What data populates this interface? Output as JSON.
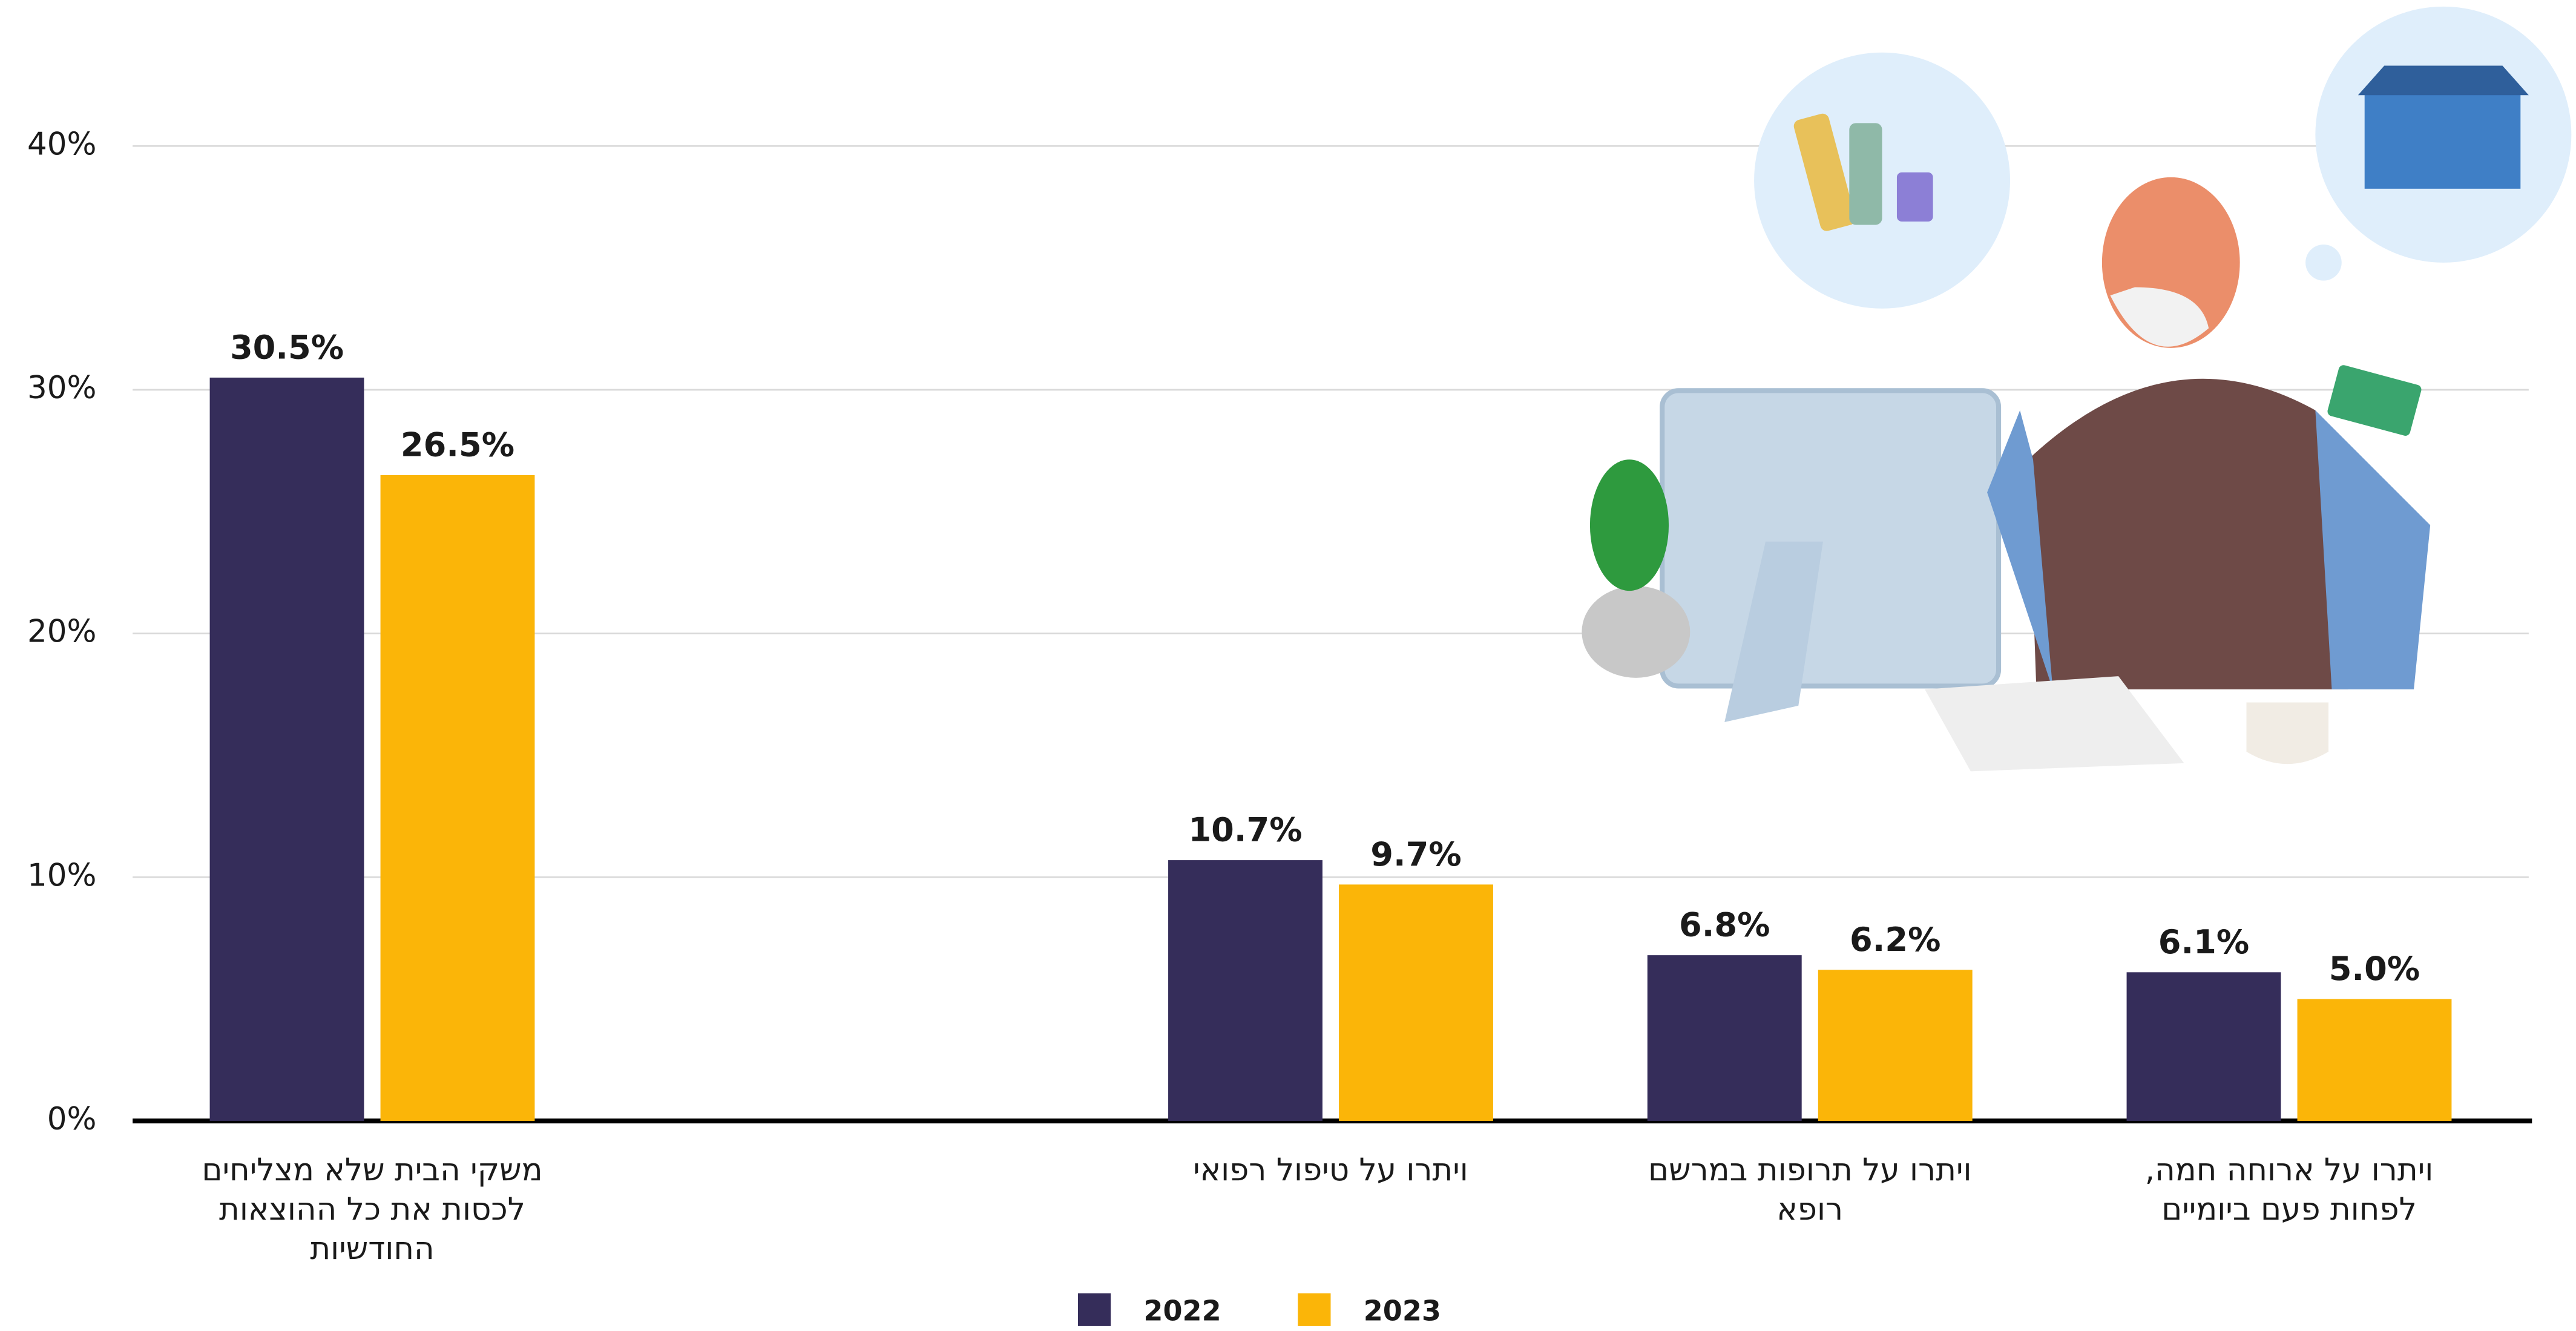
{
  "chart_data": {
    "type": "bar",
    "categories": [
      [
        "משקי הבית שלא מצליחים",
        "לכסות את כל ההוצאות",
        "החודשיות"
      ],
      null,
      [
        "ויתרו על טיפול רפואי"
      ],
      [
        "ויתרו על תרופות במרשם",
        "רופא"
      ],
      [
        "ויתרו על ארוחה חמה,",
        "לפחות פעם ביומיים"
      ]
    ],
    "series": [
      {
        "name": "2022",
        "color": "#352d5a",
        "values": [
          30.5,
          null,
          10.7,
          6.8,
          6.1
        ],
        "value_labels": [
          "30.5%",
          null,
          "10.7%",
          "6.8%",
          "6.1%"
        ]
      },
      {
        "name": "2023",
        "color": "#fbb508",
        "values": [
          26.5,
          null,
          9.7,
          6.2,
          5.0
        ],
        "value_labels": [
          "26.5%",
          null,
          "9.7%",
          "6.2%",
          "5.0%"
        ]
      }
    ],
    "ylim": [
      0,
      40
    ],
    "yticks": [
      {
        "value": 0,
        "label": "0%"
      },
      {
        "value": 10,
        "label": "10%"
      },
      {
        "value": 20,
        "label": "20%"
      },
      {
        "value": 30,
        "label": "30%"
      },
      {
        "value": 40,
        "label": "40%"
      }
    ],
    "grid": true,
    "legend": "bottom"
  }
}
